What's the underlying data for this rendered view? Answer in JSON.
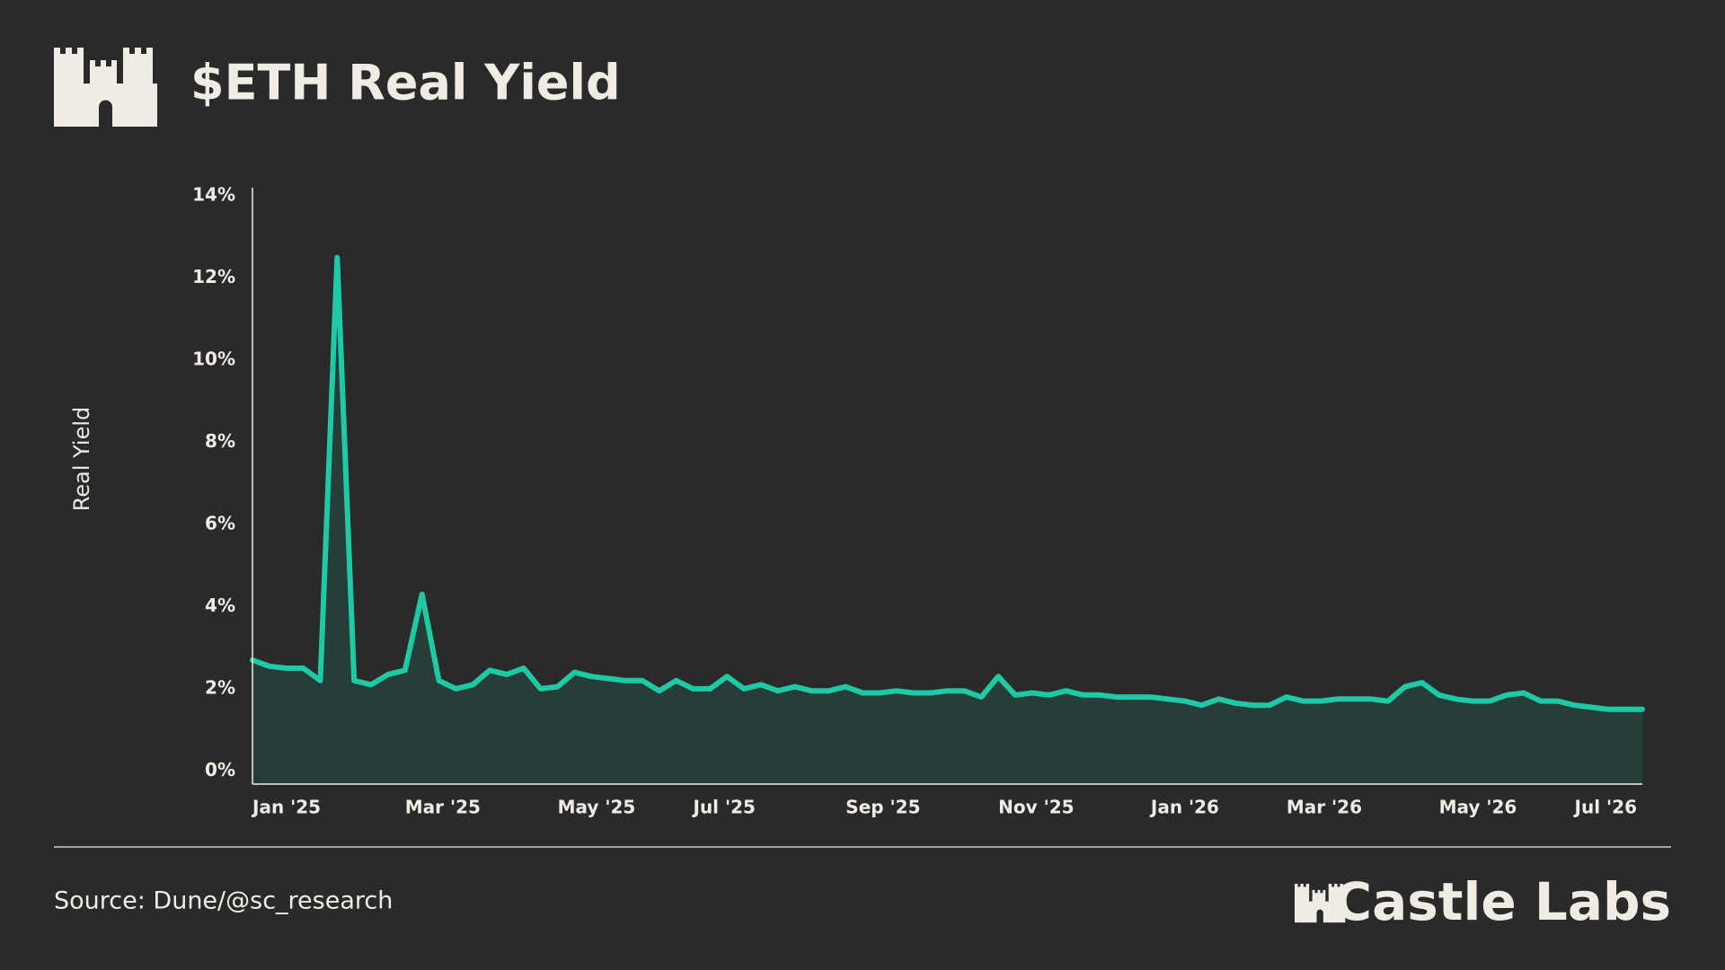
{
  "chart_data": {
    "type": "area",
    "title": "$ETH Real Yield",
    "y_label": "Real Yield",
    "categories": [
      "Jan '25",
      null,
      null,
      null,
      null,
      null,
      null,
      null,
      null,
      "Mar '25",
      null,
      null,
      null,
      null,
      null,
      null,
      null,
      null,
      "May '25",
      null,
      null,
      null,
      null,
      null,
      null,
      null,
      "Jul '25",
      null,
      null,
      null,
      null,
      null,
      null,
      null,
      null,
      "Sep '25",
      null,
      null,
      null,
      null,
      null,
      null,
      null,
      null,
      "Nov '25",
      null,
      null,
      null,
      null,
      null,
      null,
      null,
      null,
      "Jan '26",
      null,
      null,
      null,
      null,
      null,
      null,
      null,
      "Mar '26",
      null,
      null,
      null,
      null,
      null,
      null,
      null,
      null,
      "May '26",
      null,
      null,
      null,
      null,
      null,
      null,
      null,
      "Jul '26",
      null,
      null,
      null,
      null
    ],
    "series": [
      {
        "name": "Real Yield",
        "color": "#1ec9a5",
        "fill": "#263d3a",
        "values": [
          2.7,
          2.55,
          2.5,
          2.5,
          2.2,
          12.5,
          2.2,
          2.1,
          2.35,
          2.45,
          4.3,
          2.2,
          2.0,
          2.1,
          2.45,
          2.35,
          2.5,
          2.0,
          2.05,
          2.4,
          2.3,
          2.25,
          2.2,
          2.2,
          1.95,
          2.2,
          2.0,
          2.0,
          2.3,
          2.0,
          2.1,
          1.95,
          2.05,
          1.95,
          1.95,
          2.05,
          1.9,
          1.9,
          1.95,
          1.9,
          1.9,
          1.95,
          1.95,
          1.8,
          2.3,
          1.85,
          1.9,
          1.85,
          1.95,
          1.85,
          1.85,
          1.8,
          1.8,
          1.8,
          1.75,
          1.7,
          1.6,
          1.75,
          1.65,
          1.6,
          1.6,
          1.8,
          1.7,
          1.7,
          1.75,
          1.75,
          1.75,
          1.7,
          2.05,
          2.15,
          1.85,
          1.75,
          1.7,
          1.7,
          1.85,
          1.9,
          1.7,
          1.7,
          1.6,
          1.55,
          1.5,
          1.5,
          1.5
        ]
      }
    ],
    "ylim": [
      -0.32,
      14.2
    ],
    "yticks": [
      {
        "value": 0,
        "label": "0%"
      },
      {
        "value": 2,
        "label": "2%"
      },
      {
        "value": 4,
        "label": "4%"
      },
      {
        "value": 6,
        "label": "6%"
      },
      {
        "value": 8,
        "label": "8%"
      },
      {
        "value": 10,
        "label": "10%"
      },
      {
        "value": 12,
        "label": "12%"
      },
      {
        "value": 14,
        "label": "14%"
      }
    ],
    "grid": false
  },
  "footer": {
    "source": "Source: Dune/@sc_research",
    "brand": "Castle Labs"
  }
}
